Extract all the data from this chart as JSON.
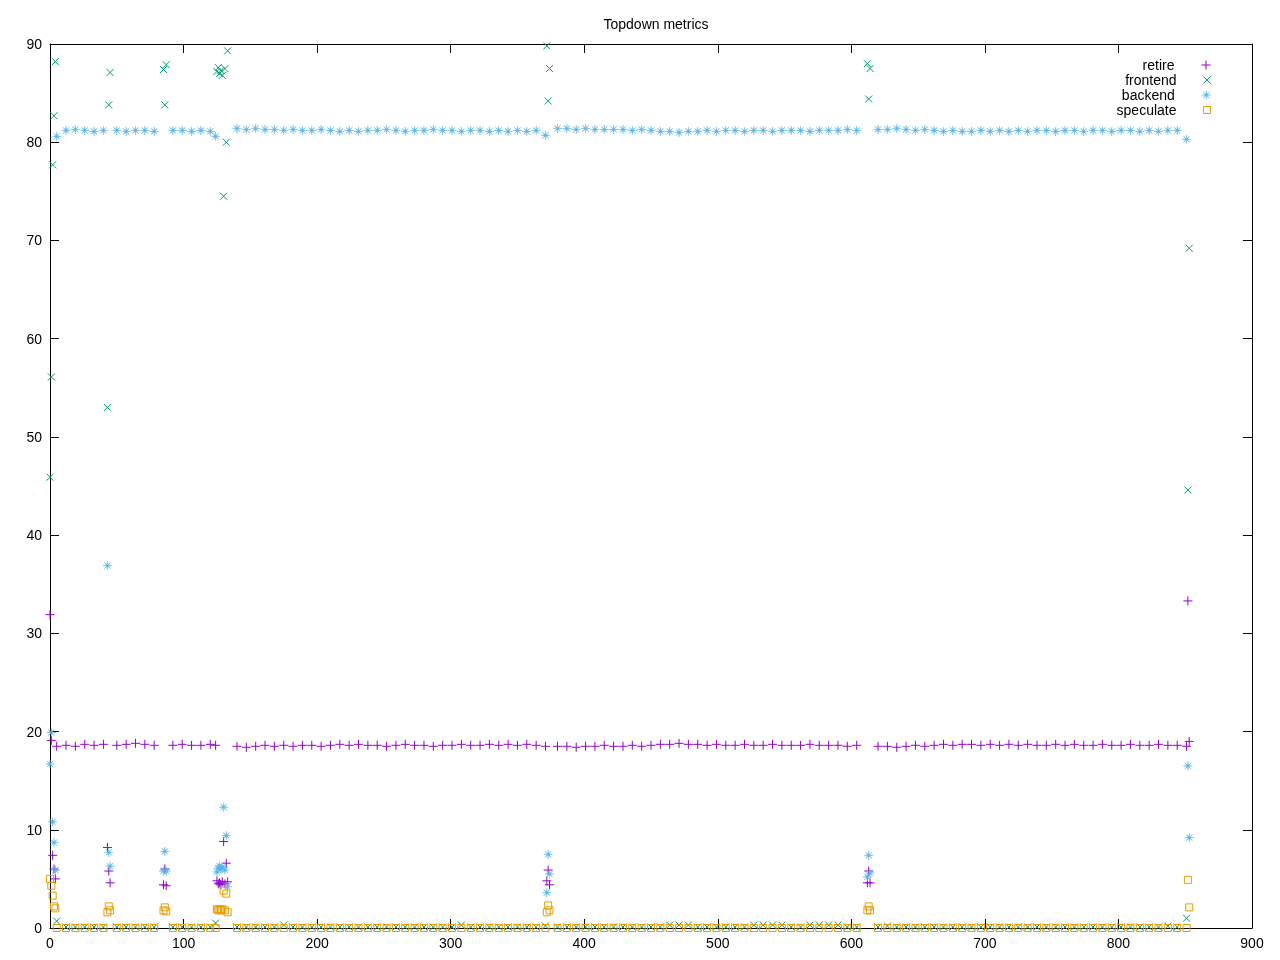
{
  "chart_data": {
    "type": "scatter",
    "title": "Topdown metrics",
    "x": [
      0,
      1,
      2,
      3,
      4,
      5,
      12,
      19,
      26,
      33,
      40,
      43,
      44,
      45,
      50,
      57,
      64,
      71,
      78,
      85,
      86,
      87,
      92,
      99,
      106,
      113,
      120,
      124,
      125,
      126,
      127,
      128,
      129,
      130,
      131,
      132,
      133,
      140,
      147,
      154,
      161,
      168,
      175,
      182,
      189,
      196,
      203,
      210,
      217,
      224,
      231,
      238,
      245,
      252,
      259,
      266,
      273,
      280,
      287,
      294,
      301,
      308,
      315,
      322,
      329,
      336,
      343,
      350,
      357,
      364,
      371,
      372,
      373,
      374,
      380,
      387,
      394,
      401,
      408,
      415,
      422,
      429,
      436,
      443,
      450,
      457,
      464,
      471,
      478,
      485,
      492,
      499,
      506,
      513,
      520,
      527,
      534,
      541,
      548,
      555,
      562,
      569,
      576,
      583,
      590,
      597,
      604,
      612,
      613,
      614,
      620,
      627,
      634,
      641,
      648,
      655,
      662,
      669,
      676,
      683,
      690,
      697,
      704,
      711,
      718,
      725,
      732,
      739,
      746,
      753,
      760,
      767,
      774,
      781,
      788,
      795,
      802,
      809,
      816,
      823,
      830,
      837,
      844,
      851,
      852,
      853
    ],
    "xlim": [
      0,
      900
    ],
    "xticks": [
      0,
      100,
      200,
      300,
      400,
      500,
      600,
      700,
      800,
      900
    ],
    "ylim": [
      0,
      90
    ],
    "yticks": [
      0,
      10,
      20,
      30,
      40,
      50,
      60,
      70,
      80,
      90
    ],
    "legend": "top right",
    "series": [
      {
        "name": "retire",
        "color": "#9400d3",
        "marker": "cross",
        "values": [
          31.9,
          19.1,
          7.4,
          6,
          5,
          18.5,
          18.6,
          18.5,
          18.7,
          18.6,
          18.7,
          8.2,
          5.8,
          4.6,
          18.6,
          18.7,
          18.8,
          18.7,
          18.6,
          4.4,
          6,
          4.3,
          18.6,
          18.7,
          18.6,
          18.6,
          18.7,
          18.6,
          4.8,
          4.5,
          4.6,
          4.4,
          4.7,
          8.8,
          4.5,
          6.6,
          4.7,
          18.5,
          18.4,
          18.5,
          18.6,
          18.5,
          18.6,
          18.5,
          18.6,
          18.6,
          18.5,
          18.6,
          18.7,
          18.6,
          18.7,
          18.6,
          18.6,
          18.5,
          18.6,
          18.7,
          18.6,
          18.6,
          18.5,
          18.6,
          18.6,
          18.7,
          18.6,
          18.6,
          18.7,
          18.6,
          18.7,
          18.6,
          18.7,
          18.6,
          18.5,
          4.8,
          5.9,
          4.4,
          18.5,
          18.5,
          18.4,
          18.5,
          18.5,
          18.6,
          18.5,
          18.5,
          18.6,
          18.5,
          18.6,
          18.7,
          18.7,
          18.8,
          18.7,
          18.7,
          18.6,
          18.7,
          18.6,
          18.6,
          18.7,
          18.6,
          18.6,
          18.7,
          18.6,
          18.6,
          18.6,
          18.7,
          18.6,
          18.6,
          18.6,
          18.5,
          18.6,
          4.6,
          5.8,
          4.6,
          18.5,
          18.5,
          18.4,
          18.5,
          18.6,
          18.5,
          18.6,
          18.7,
          18.6,
          18.7,
          18.7,
          18.6,
          18.7,
          18.6,
          18.7,
          18.6,
          18.7,
          18.6,
          18.6,
          18.7,
          18.6,
          18.7,
          18.6,
          18.6,
          18.7,
          18.6,
          18.6,
          18.7,
          18.6,
          18.6,
          18.7,
          18.6,
          18.6,
          18.5,
          33.3,
          19
        ]
      },
      {
        "name": "frontend",
        "color": "#009e73",
        "marker": "x",
        "values": [
          45.9,
          56.1,
          77.7,
          82.7,
          88.2,
          0.7,
          0.1,
          0.1,
          0.1,
          0.1,
          0.1,
          53,
          83.8,
          87.1,
          0.1,
          0.1,
          0.1,
          0.1,
          0.1,
          87.4,
          83.8,
          87.9,
          0.1,
          0.1,
          0.1,
          0.1,
          0.1,
          0.5,
          87.2,
          87.6,
          87,
          87.3,
          86.8,
          74.5,
          87.5,
          80,
          89.3,
          0.1,
          0.1,
          0.1,
          0.1,
          0.1,
          0.3,
          0.1,
          0.1,
          0.1,
          0.1,
          0.1,
          0.1,
          0.1,
          0.1,
          0.1,
          0.1,
          0.1,
          0.1,
          0.1,
          0.1,
          0.1,
          0.1,
          0.1,
          0.1,
          0.3,
          0.1,
          0.1,
          0.1,
          0.1,
          0.1,
          0.1,
          0.1,
          0.1,
          0.2,
          89.8,
          84.2,
          87.5,
          0.1,
          0.1,
          0.1,
          0.1,
          0.1,
          0.1,
          0.1,
          0.1,
          0.1,
          0.1,
          0.1,
          0.1,
          0.3,
          0.3,
          0.3,
          0.1,
          0.1,
          0.1,
          0.1,
          0.1,
          0.1,
          0.3,
          0.3,
          0.3,
          0.3,
          0.1,
          0.1,
          0.3,
          0.3,
          0.3,
          0.3,
          0.1,
          0.1,
          88,
          84.4,
          87.5,
          0.1,
          0.2,
          0.1,
          0.1,
          0.1,
          0.1,
          0.1,
          0.1,
          0.1,
          0.1,
          0.1,
          0.1,
          0.1,
          0.1,
          0.1,
          0.1,
          0.1,
          0.1,
          0.1,
          0.1,
          0.1,
          0.1,
          0.1,
          0.1,
          0.1,
          0.1,
          0.1,
          0.1,
          0.1,
          0.1,
          0.1,
          0.2,
          0.1,
          1,
          44.6,
          69.2
        ]
      },
      {
        "name": "backend",
        "color": "#56b4e9",
        "marker": "star",
        "values": [
          16.7,
          19.9,
          10.8,
          8.7,
          5.9,
          80.6,
          81.2,
          81.3,
          81.2,
          81.1,
          81.2,
          36.9,
          7.7,
          6.3,
          81.2,
          81.1,
          81.2,
          81.2,
          81.1,
          5.8,
          7.8,
          5.8,
          81.2,
          81.2,
          81.1,
          81.2,
          81.1,
          80.6,
          5.7,
          6.1,
          6.3,
          6,
          6.2,
          12.3,
          5.9,
          9.4,
          4.2,
          81.4,
          81.3,
          81.4,
          81.3,
          81.3,
          81.2,
          81.3,
          81.2,
          81.2,
          81.3,
          81.2,
          81.1,
          81.2,
          81.1,
          81.2,
          81.2,
          81.3,
          81.2,
          81.1,
          81.2,
          81.2,
          81.3,
          81.2,
          81.2,
          81.1,
          81.2,
          81.2,
          81.1,
          81.2,
          81.1,
          81.2,
          81.1,
          81.2,
          80.7,
          3.6,
          7.5,
          5.5,
          81.4,
          81.4,
          81.3,
          81.4,
          81.3,
          81.3,
          81.3,
          81.3,
          81.2,
          81.3,
          81.2,
          81.1,
          81.1,
          81,
          81.1,
          81.1,
          81.2,
          81.1,
          81.2,
          81.2,
          81.1,
          81.2,
          81.2,
          81.1,
          81.2,
          81.2,
          81.2,
          81.1,
          81.2,
          81.2,
          81.2,
          81.3,
          81.2,
          5.2,
          7.4,
          5.6,
          81.3,
          81.3,
          81.4,
          81.3,
          81.2,
          81.3,
          81.2,
          81.1,
          81.2,
          81.1,
          81.1,
          81.2,
          81.1,
          81.2,
          81.1,
          81.2,
          81.1,
          81.2,
          81.2,
          81.1,
          81.2,
          81.2,
          81.1,
          81.2,
          81.2,
          81.1,
          81.2,
          81.2,
          81.1,
          81.2,
          81.1,
          81.2,
          81.2,
          80.3,
          16.5,
          9.2
        ]
      },
      {
        "name": "speculate",
        "color": "#e69f00",
        "marker": "square",
        "values": [
          5,
          4.3,
          3.3,
          2.2,
          2,
          0,
          0,
          0,
          0,
          0,
          0,
          1.6,
          2.2,
          1.8,
          0,
          0,
          0,
          0,
          0,
          1.8,
          2.1,
          1.7,
          0,
          0,
          0,
          0,
          0,
          0,
          1.9,
          1.8,
          1.9,
          1.8,
          1.9,
          3.8,
          1.8,
          3.5,
          1.6,
          0,
          0,
          0,
          0,
          0,
          0,
          0,
          0,
          0,
          0,
          0,
          0,
          0,
          0,
          0,
          0,
          0,
          0,
          0,
          0,
          0,
          0,
          0,
          0,
          0,
          0,
          0,
          0,
          0,
          0,
          0,
          0,
          0,
          0,
          1.6,
          2.3,
          1.8,
          0,
          0,
          0,
          0,
          0,
          0,
          0,
          0,
          0,
          0,
          0,
          0,
          0,
          0,
          0,
          0,
          0,
          0,
          0,
          0,
          0,
          0,
          0,
          0,
          0,
          0,
          0,
          0,
          0,
          0,
          0,
          0,
          0,
          1.8,
          2.2,
          1.8,
          0,
          0,
          0,
          0,
          0,
          0,
          0,
          0,
          0,
          0,
          0,
          0,
          0,
          0,
          0,
          0,
          0,
          0,
          0,
          0,
          0,
          0,
          0,
          0,
          0,
          0,
          0,
          0,
          0,
          0,
          0,
          0,
          0,
          0,
          4.9,
          2.1
        ]
      }
    ]
  }
}
